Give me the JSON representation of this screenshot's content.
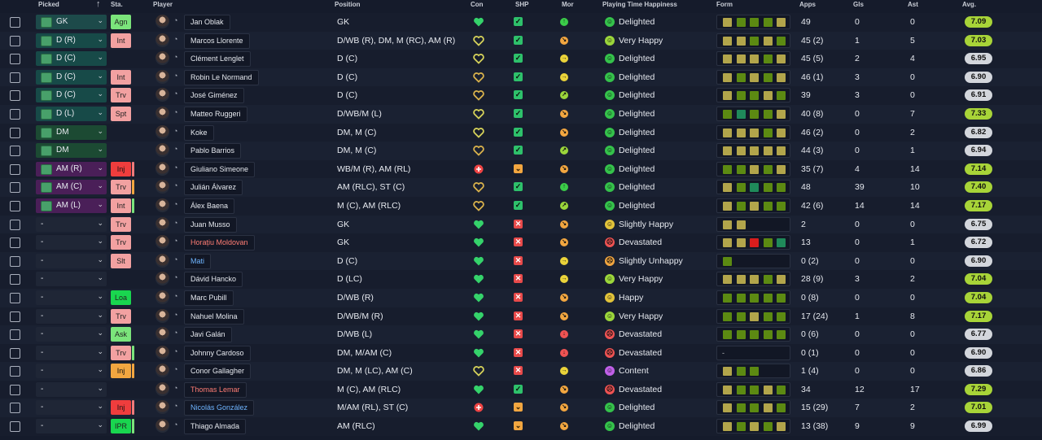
{
  "headers": {
    "picked": "Picked",
    "sta": "Sta.",
    "player": "Player",
    "position": "Position",
    "con": "Con",
    "shp": "SHP",
    "mor": "Mor",
    "pth": "Playing Time Happiness",
    "form": "Form",
    "apps": "Apps",
    "gls": "Gls",
    "ast": "Ast",
    "avg": "Avg."
  },
  "colors": {
    "form_olive": "#b2a54b",
    "form_green": "#5c8a12",
    "form_teal": "#1f8a5a",
    "form_red": "#d81d1d",
    "avg_lime": "#a8d438",
    "avg_grey": "#d3d6dc"
  },
  "rows": [
    {
      "picked": "GK",
      "picked_cls": "gk",
      "sta": "Agn",
      "sta_cls": "b-green",
      "bar": "",
      "name": "Jan Oblak",
      "name_cls": "",
      "pos": "GK",
      "con": "green",
      "shp": "yes",
      "mor": "g",
      "pth": "Delighted",
      "pth_cls": "g",
      "form": [
        "o",
        "g",
        "g",
        "g",
        "o"
      ],
      "apps": "49",
      "gls": "0",
      "ast": "0",
      "avg": "7.09",
      "avg_cls": "lime"
    },
    {
      "picked": "D (R)",
      "picked_cls": "def",
      "sta": "Int",
      "sta_cls": "b-pink",
      "bar": "",
      "name": "Marcos Llorente",
      "name_cls": "",
      "pos": "D/WB (R), DM, M (RC), AM (R)",
      "con": "yellow",
      "shp": "yes",
      "mor": "o",
      "pth": "Very Happy",
      "pth_cls": "lg",
      "form": [
        "o",
        "o",
        "g",
        "o",
        "g"
      ],
      "apps": "45 (2)",
      "gls": "1",
      "ast": "5",
      "avg": "7.03",
      "avg_cls": "lime"
    },
    {
      "picked": "D (C)",
      "picked_cls": "def",
      "sta": "",
      "sta_cls": "",
      "bar": "",
      "name": "Clément Lenglet",
      "name_cls": "",
      "pos": "D (C)",
      "con": "yellow",
      "shp": "yes",
      "mor": "y",
      "pth": "Delighted",
      "pth_cls": "g",
      "form": [
        "o",
        "o",
        "o",
        "g",
        "o"
      ],
      "apps": "45 (5)",
      "gls": "2",
      "ast": "4",
      "avg": "6.95",
      "avg_cls": "grey"
    },
    {
      "picked": "D (C)",
      "picked_cls": "def",
      "sta": "Int",
      "sta_cls": "b-pink",
      "bar": "",
      "name": "Robin Le Normand",
      "name_cls": "",
      "pos": "D (C)",
      "con": "amber",
      "shp": "yes",
      "mor": "y",
      "pth": "Delighted",
      "pth_cls": "g",
      "form": [
        "o",
        "g",
        "o",
        "g",
        "o"
      ],
      "apps": "46 (1)",
      "gls": "3",
      "ast": "0",
      "avg": "6.90",
      "avg_cls": "grey"
    },
    {
      "picked": "D (C)",
      "picked_cls": "def",
      "sta": "Trv",
      "sta_cls": "b-pink",
      "bar": "",
      "name": "José Giménez",
      "name_cls": "",
      "pos": "D (C)",
      "con": "amber",
      "shp": "yes",
      "mor": "lg",
      "pth": "Delighted",
      "pth_cls": "g",
      "form": [
        "o",
        "g",
        "g",
        "o",
        "g"
      ],
      "apps": "39",
      "gls": "3",
      "ast": "0",
      "avg": "6.91",
      "avg_cls": "grey"
    },
    {
      "picked": "D (L)",
      "picked_cls": "def",
      "sta": "Spt",
      "sta_cls": "b-pink",
      "bar": "",
      "name": "Matteo Ruggeri",
      "name_cls": "",
      "pos": "D/WB/M (L)",
      "con": "yellow",
      "shp": "yes",
      "mor": "o",
      "pth": "Delighted",
      "pth_cls": "g",
      "form": [
        "g",
        "t",
        "g",
        "g",
        "o"
      ],
      "apps": "40 (8)",
      "gls": "0",
      "ast": "7",
      "avg": "7.33",
      "avg_cls": "lime"
    },
    {
      "picked": "DM",
      "picked_cls": "dm",
      "sta": "",
      "sta_cls": "",
      "bar": "",
      "name": "Koke",
      "name_cls": "",
      "pos": "DM, M (C)",
      "con": "yellow",
      "shp": "yes",
      "mor": "o",
      "pth": "Delighted",
      "pth_cls": "g",
      "form": [
        "o",
        "o",
        "o",
        "g",
        "o"
      ],
      "apps": "46 (2)",
      "gls": "0",
      "ast": "2",
      "avg": "6.82",
      "avg_cls": "grey"
    },
    {
      "picked": "DM",
      "picked_cls": "dm",
      "sta": "",
      "sta_cls": "",
      "bar": "",
      "name": "Pablo Barrios",
      "name_cls": "",
      "pos": "DM, M (C)",
      "con": "amber",
      "shp": "yes",
      "mor": "lg",
      "pth": "Delighted",
      "pth_cls": "g",
      "form": [
        "o",
        "o",
        "o",
        "o",
        "o"
      ],
      "apps": "44 (3)",
      "gls": "0",
      "ast": "1",
      "avg": "6.94",
      "avg_cls": "grey"
    },
    {
      "picked": "AM (R)",
      "picked_cls": "am",
      "sta": "Inj",
      "sta_cls": "b-red",
      "bar": "#f07a7a",
      "name": "Giuliano Simeone",
      "name_cls": "",
      "pos": "WB/M (R), AM (RL)",
      "con": "red",
      "shp": "warn",
      "mor": "o",
      "pth": "Delighted",
      "pth_cls": "g",
      "form": [
        "g",
        "g",
        "o",
        "g",
        "o"
      ],
      "apps": "35 (7)",
      "gls": "4",
      "ast": "14",
      "avg": "7.14",
      "avg_cls": "lime"
    },
    {
      "picked": "AM (C)",
      "picked_cls": "am",
      "sta": "Trv",
      "sta_cls": "b-pink",
      "bar": "#f2a640",
      "name": "Julián Álvarez",
      "name_cls": "",
      "pos": "AM (RLC), ST (C)",
      "con": "amber",
      "shp": "yes",
      "mor": "g",
      "pth": "Delighted",
      "pth_cls": "g",
      "form": [
        "o",
        "g",
        "t",
        "g",
        "g"
      ],
      "apps": "48",
      "gls": "39",
      "ast": "10",
      "avg": "7.40",
      "avg_cls": "lime"
    },
    {
      "picked": "AM (L)",
      "picked_cls": "am",
      "sta": "Int",
      "sta_cls": "b-pink",
      "bar": "#7be47b",
      "name": "Álex Baena",
      "name_cls": "",
      "pos": "M (C), AM (RLC)",
      "con": "amber",
      "shp": "yes",
      "mor": "lg",
      "pth": "Delighted",
      "pth_cls": "g",
      "form": [
        "o",
        "g",
        "o",
        "g",
        "g"
      ],
      "apps": "42 (6)",
      "gls": "14",
      "ast": "14",
      "avg": "7.17",
      "avg_cls": "lime"
    },
    {
      "picked": "-",
      "picked_cls": "none",
      "sta": "Trv",
      "sta_cls": "b-pink",
      "bar": "",
      "name": "Juan Musso",
      "name_cls": "",
      "pos": "GK",
      "con": "green",
      "shp": "no",
      "mor": "o",
      "pth": "Slightly Happy",
      "pth_cls": "y",
      "form": [
        "o",
        "o"
      ],
      "apps": "2",
      "gls": "0",
      "ast": "0",
      "avg": "6.75",
      "avg_cls": "grey"
    },
    {
      "picked": "-",
      "picked_cls": "none",
      "sta": "Trv",
      "sta_cls": "b-pink",
      "bar": "",
      "name": "Horațiu Moldovan",
      "name_cls": "red",
      "pos": "GK",
      "con": "green",
      "shp": "no",
      "mor": "o",
      "pth": "Devastated",
      "pth_cls": "r",
      "form": [
        "o",
        "o",
        "r",
        "g",
        "t"
      ],
      "apps": "13",
      "gls": "0",
      "ast": "1",
      "avg": "6.72",
      "avg_cls": "grey"
    },
    {
      "picked": "-",
      "picked_cls": "none",
      "sta": "Slt",
      "sta_cls": "b-pink",
      "bar": "",
      "name": "Mati",
      "name_cls": "blue",
      "pos": "D (C)",
      "con": "green",
      "shp": "no",
      "mor": "y",
      "pth": "Slightly Unhappy",
      "pth_cls": "o",
      "form": [
        "g"
      ],
      "apps": "0 (2)",
      "gls": "0",
      "ast": "0",
      "avg": "6.90",
      "avg_cls": "grey"
    },
    {
      "picked": "-",
      "picked_cls": "none",
      "sta": "",
      "sta_cls": "",
      "bar": "",
      "name": "Dávid Hancko",
      "name_cls": "",
      "pos": "D (LC)",
      "con": "green",
      "shp": "no",
      "mor": "y",
      "pth": "Very Happy",
      "pth_cls": "lg",
      "form": [
        "o",
        "o",
        "o",
        "g",
        "o"
      ],
      "apps": "28 (9)",
      "gls": "3",
      "ast": "2",
      "avg": "7.04",
      "avg_cls": "lime"
    },
    {
      "picked": "-",
      "picked_cls": "none",
      "sta": "Loa",
      "sta_cls": "b-bright",
      "bar": "",
      "name": "Marc Pubill",
      "name_cls": "",
      "pos": "D/WB (R)",
      "con": "green",
      "shp": "no",
      "mor": "o",
      "pth": "Happy",
      "pth_cls": "y",
      "form": [
        "g",
        "g",
        "g",
        "g",
        "g"
      ],
      "apps": "0 (8)",
      "gls": "0",
      "ast": "0",
      "avg": "7.04",
      "avg_cls": "lime"
    },
    {
      "picked": "-",
      "picked_cls": "none",
      "sta": "Trv",
      "sta_cls": "b-pink",
      "bar": "",
      "name": "Nahuel Molina",
      "name_cls": "",
      "pos": "D/WB/M (R)",
      "con": "green",
      "shp": "no",
      "mor": "o",
      "pth": "Very Happy",
      "pth_cls": "lg",
      "form": [
        "g",
        "g",
        "o",
        "g",
        "g"
      ],
      "apps": "17 (24)",
      "gls": "1",
      "ast": "8",
      "avg": "7.17",
      "avg_cls": "lime"
    },
    {
      "picked": "-",
      "picked_cls": "none",
      "sta": "Ask",
      "sta_cls": "b-green",
      "bar": "",
      "name": "Javi Galán",
      "name_cls": "",
      "pos": "D/WB (L)",
      "con": "green",
      "shp": "no",
      "mor": "r",
      "pth": "Devastated",
      "pth_cls": "r",
      "form": [
        "g",
        "g",
        "g",
        "g",
        "g"
      ],
      "apps": "0 (6)",
      "gls": "0",
      "ast": "0",
      "avg": "6.77",
      "avg_cls": "grey"
    },
    {
      "picked": "-",
      "picked_cls": "none",
      "sta": "Trv",
      "sta_cls": "b-pink",
      "bar": "#7be47b",
      "name": "Johnny Cardoso",
      "name_cls": "",
      "pos": "DM, M/AM (C)",
      "con": "green",
      "shp": "no",
      "mor": "r",
      "pth": "Devastated",
      "pth_cls": "r",
      "form": [],
      "form_dash": "-",
      "apps": "0 (1)",
      "gls": "0",
      "ast": "0",
      "avg": "6.90",
      "avg_cls": "grey"
    },
    {
      "picked": "-",
      "picked_cls": "none",
      "sta": "Inj",
      "sta_cls": "b-orange",
      "bar": "#f2a640",
      "name": "Conor Gallagher",
      "name_cls": "",
      "pos": "DM, M (LC), AM (C)",
      "con": "yellow",
      "shp": "no",
      "mor": "y",
      "pth": "Content",
      "pth_cls": "p",
      "form": [
        "o",
        "g",
        "g"
      ],
      "apps": "1 (4)",
      "gls": "0",
      "ast": "0",
      "avg": "6.86",
      "avg_cls": "grey"
    },
    {
      "picked": "-",
      "picked_cls": "none",
      "sta": "",
      "sta_cls": "",
      "bar": "",
      "name": "Thomas Lemar",
      "name_cls": "red",
      "pos": "M (C), AM (RLC)",
      "con": "green",
      "shp": "yes",
      "mor": "o",
      "pth": "Devastated",
      "pth_cls": "r",
      "form": [
        "o",
        "g",
        "g",
        "o",
        "g"
      ],
      "apps": "34",
      "gls": "12",
      "ast": "17",
      "avg": "7.29",
      "avg_cls": "lime"
    },
    {
      "picked": "-",
      "picked_cls": "none",
      "sta": "Inj",
      "sta_cls": "b-red",
      "bar": "#f07a7a",
      "name": "Nicolás González",
      "name_cls": "blue",
      "pos": "M/AM (RL), ST (C)",
      "con": "red",
      "shp": "warn",
      "mor": "o",
      "pth": "Delighted",
      "pth_cls": "g",
      "form": [
        "o",
        "g",
        "g",
        "o",
        "g"
      ],
      "apps": "15 (29)",
      "gls": "7",
      "ast": "2",
      "avg": "7.01",
      "avg_cls": "lime"
    },
    {
      "picked": "-",
      "picked_cls": "none",
      "sta": "IPR",
      "sta_cls": "b-bright",
      "bar": "#7be47b",
      "name": "Thiago Almada",
      "name_cls": "",
      "pos": "AM (RLC)",
      "con": "green",
      "shp": "warn",
      "mor": "o",
      "pth": "Delighted",
      "pth_cls": "g",
      "form": [
        "o",
        "g",
        "o",
        "g",
        "o"
      ],
      "apps": "13 (38)",
      "gls": "9",
      "ast": "9",
      "avg": "6.99",
      "avg_cls": "grey"
    }
  ]
}
